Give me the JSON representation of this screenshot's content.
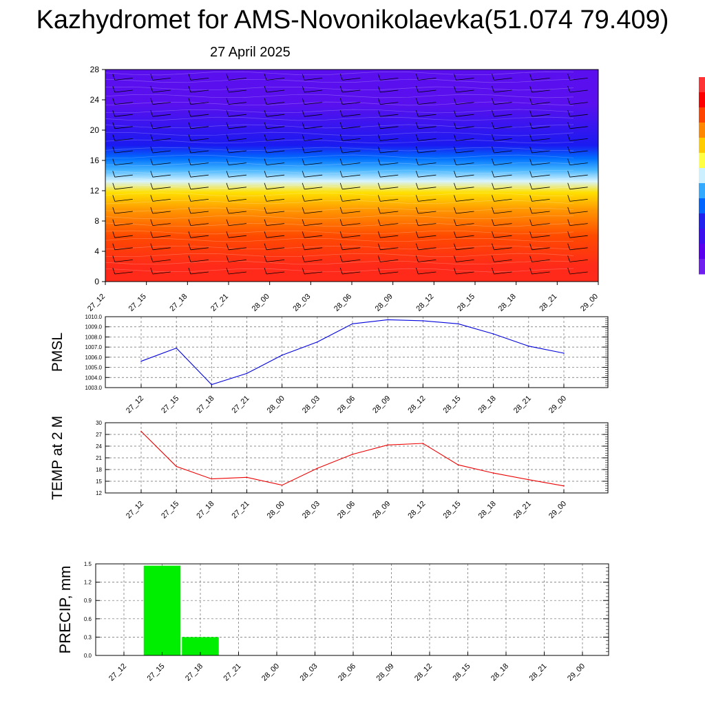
{
  "title": "Kazhydromet for AMS-Novonikolaevka(51.074 79.409)",
  "subtitle": "27 April 2025",
  "colors": {
    "pmsl_line": "#0000dd",
    "temp_line": "#ee0000",
    "precip_bar": "#00ee00",
    "colorbar": [
      "#ff3333",
      "#ff0000",
      "#ff4400",
      "#ff8800",
      "#ffcc00",
      "#ffff44",
      "#ccf0ff",
      "#33aaff",
      "#0066ff",
      "#2222ee",
      "#3a10ee",
      "#5a00ee",
      "#7020ee"
    ]
  },
  "chart_data": [
    {
      "type": "heatmap",
      "name": "vertical cross-section with wind barbs",
      "x": [
        "27_12",
        "27_15",
        "27_18",
        "27_21",
        "28_00",
        "28_03",
        "28_06",
        "28_09",
        "28_12",
        "28_15",
        "28_18",
        "28_21",
        "29_00"
      ],
      "yticks": [
        "0",
        "4",
        "8",
        "12",
        "16",
        "20",
        "24",
        "28"
      ],
      "ylim": [
        0,
        28
      ],
      "bands": [
        {
          "y0": 0,
          "y1": 4,
          "color": "#ff2a1a"
        },
        {
          "y0": 4,
          "y1": 8,
          "color": "#ff4a00"
        },
        {
          "y0": 8,
          "y1": 11,
          "color": "#ff9800"
        },
        {
          "y0": 11,
          "y1": 12.5,
          "color": "#ffe000"
        },
        {
          "y0": 12.5,
          "y1": 14,
          "color": "#d8f4ff"
        },
        {
          "y0": 14,
          "y1": 15.5,
          "color": "#44b4ff"
        },
        {
          "y0": 15.5,
          "y1": 17,
          "color": "#0070ff"
        },
        {
          "y0": 17,
          "y1": 19,
          "color": "#1a1af0"
        },
        {
          "y0": 19,
          "y1": 28,
          "color": "#5a10ee"
        }
      ],
      "wind_barbs": true
    },
    {
      "type": "line",
      "ylabel": "PMSL",
      "x": [
        "27_12",
        "27_15",
        "27_18",
        "27_21",
        "28_00",
        "28_03",
        "28_06",
        "28_09",
        "28_12",
        "28_15",
        "28_18",
        "28_21",
        "29_00"
      ],
      "yticks": [
        "1003.0",
        "1004.0",
        "1005.0",
        "1006.0",
        "1007.0",
        "1008.0",
        "1009.0",
        "1010.0"
      ],
      "ylim": [
        1003,
        1010
      ],
      "values": [
        1005.6,
        1006.9,
        1003.3,
        1004.4,
        1006.2,
        1007.5,
        1009.3,
        1009.7,
        1009.6,
        1009.3,
        1008.3,
        1007.1,
        1006.4
      ],
      "grid": true
    },
    {
      "type": "line",
      "ylabel": "TEMP at 2 M",
      "x": [
        "27_12",
        "27_15",
        "27_18",
        "27_21",
        "28_00",
        "28_03",
        "28_06",
        "28_09",
        "28_12",
        "28_15",
        "28_18",
        "28_21",
        "29_00"
      ],
      "yticks": [
        "12",
        "15",
        "18",
        "21",
        "24",
        "27",
        "30"
      ],
      "ylim": [
        12,
        30
      ],
      "values": [
        27.8,
        18.8,
        15.6,
        16.0,
        14.0,
        18.3,
        21.9,
        24.3,
        24.7,
        19.2,
        17.1,
        15.4,
        13.8
      ],
      "grid": true
    },
    {
      "type": "bar",
      "ylabel": "PRECIP, mm",
      "x": [
        "27_12",
        "27_15",
        "27_18",
        "27_21",
        "28_00",
        "28_03",
        "28_06",
        "28_09",
        "28_12",
        "28_15",
        "28_18",
        "28_21",
        "29_00"
      ],
      "yticks": [
        "0.0",
        "0.3",
        "0.6",
        "0.9",
        "1.2",
        "1.5"
      ],
      "ylim": [
        0,
        1.5
      ],
      "values": [
        0,
        1.47,
        0.3,
        0,
        0,
        0,
        0,
        0,
        0,
        0,
        0,
        0,
        0
      ],
      "grid": true
    }
  ]
}
